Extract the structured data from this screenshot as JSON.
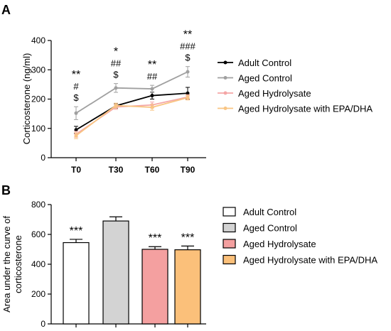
{
  "chart_data": [
    {
      "panel": "A",
      "type": "line",
      "title": "",
      "xlabel": "",
      "ylabel": "Corticosterone (ng/ml)",
      "categories": [
        "T0",
        "T30",
        "T60",
        "T90"
      ],
      "ylim": [
        0,
        400
      ],
      "yticks": [
        "0",
        "100",
        "200",
        "300",
        "400"
      ],
      "series": [
        {
          "name": "Adult Control",
          "color": "#000000",
          "values": [
            95,
            177,
            212,
            220
          ],
          "errors": [
            12,
            8,
            12,
            20
          ]
        },
        {
          "name": "Aged Control",
          "color": "#a0a0a0",
          "values": [
            152,
            238,
            235,
            293
          ],
          "errors": [
            22,
            15,
            12,
            18
          ]
        },
        {
          "name": "Aged Hydrolysate",
          "color": "#f4a6a6",
          "values": [
            80,
            173,
            180,
            207
          ],
          "errors": [
            10,
            8,
            10,
            8
          ]
        },
        {
          "name": "Aged Hydrolysate with EPA/DHA",
          "color": "#f9c583",
          "values": [
            75,
            178,
            172,
            205
          ],
          "errors": [
            10,
            8,
            10,
            8
          ]
        }
      ],
      "annotations": [
        {
          "category": "T0",
          "lines": [
            "**",
            "#",
            "$"
          ]
        },
        {
          "category": "T30",
          "lines": [
            "*",
            "##",
            "$"
          ]
        },
        {
          "category": "T60",
          "lines": [
            "**",
            "##"
          ]
        },
        {
          "category": "T90",
          "lines": [
            "**",
            "###",
            "$"
          ]
        }
      ]
    },
    {
      "panel": "B",
      "type": "bar",
      "title": "",
      "xlabel": "",
      "ylabel_lines": [
        "Area under the curve of",
        "corticosterone"
      ],
      "categories": [
        "Adult Control",
        "Aged Control",
        "Aged Hydrolysate",
        "Aged Hydrolysate with EPA/DHA"
      ],
      "values": [
        545,
        690,
        500,
        497
      ],
      "errors": [
        22,
        28,
        18,
        25
      ],
      "colors": [
        "#ffffff",
        "#d3d3d3",
        "#f4a0a0",
        "#fbc07a"
      ],
      "ylim": [
        0,
        800
      ],
      "yticks": [
        "0",
        "200",
        "400",
        "600",
        "800"
      ],
      "annotations": [
        "***",
        "",
        "***",
        "***"
      ]
    }
  ]
}
